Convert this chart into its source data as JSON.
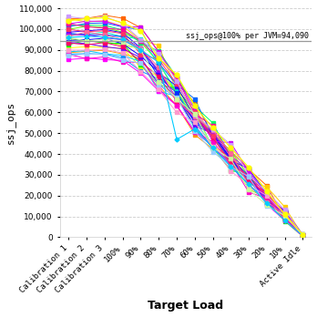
{
  "x_labels": [
    "Calibration 1",
    "Calibration 2",
    "Calibration 3",
    "100%",
    "90%",
    "80%",
    "70%",
    "60%",
    "50%",
    "40%",
    "30%",
    "20%",
    "10%",
    "Active Idle"
  ],
  "ylabel": "ssj_ops",
  "xlabel": "Target Load",
  "title_annotation": "ssj_ops@100% per JVM=94,090",
  "hline_value": 94090,
  "ylim": [
    0,
    110000
  ],
  "yticks": [
    0,
    10000,
    20000,
    30000,
    40000,
    50000,
    60000,
    70000,
    80000,
    90000,
    100000,
    110000
  ],
  "n_series": 30,
  "bg_color": "#ffffff",
  "grid_color": "#cccccc",
  "series_colors": [
    "#ff0000",
    "#ff6600",
    "#ff9900",
    "#ffcc00",
    "#ffff00",
    "#ccff00",
    "#99ff00",
    "#66ff00",
    "#00ff00",
    "#00ff66",
    "#00ffcc",
    "#00ccff",
    "#0099ff",
    "#0066ff",
    "#0033ff",
    "#0000ff",
    "#3300ff",
    "#6600ff",
    "#9900ff",
    "#cc00ff",
    "#ff00ff",
    "#ff00cc",
    "#ff0099",
    "#ff0066",
    "#ff3366",
    "#ff6699",
    "#ff99cc",
    "#cc99ff",
    "#99ccff",
    "#ccff99"
  ],
  "special_color": "#00ccff",
  "special_marker": "D",
  "yellow_color": "#ffff00",
  "hline_color": "#999999"
}
